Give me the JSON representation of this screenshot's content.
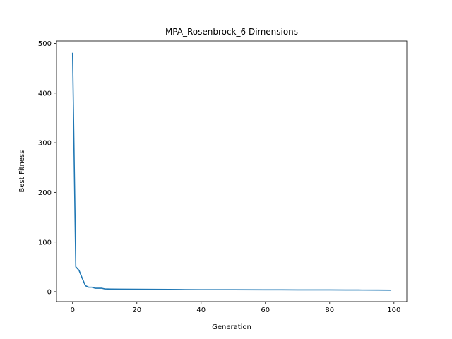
{
  "chart_data": {
    "type": "line",
    "title": "MPA_Rosenbrock_6 Dimensions",
    "xlabel": "Generation",
    "ylabel": "Best Fitness",
    "xlim": [
      -5,
      104
    ],
    "ylim": [
      -20,
      505
    ],
    "xticks": [
      0,
      20,
      40,
      60,
      80,
      100
    ],
    "yticks": [
      0,
      100,
      200,
      300,
      400,
      500
    ],
    "grid": false,
    "series": [
      {
        "name": "",
        "color": "#1f77b4",
        "x": [
          0,
          1,
          2,
          3,
          4,
          5,
          6,
          7,
          8,
          9,
          10,
          12,
          15,
          20,
          25,
          30,
          35,
          40,
          50,
          60,
          65,
          70,
          80,
          85,
          90,
          95,
          99
        ],
        "y": [
          480,
          50,
          43,
          27,
          12,
          9,
          9,
          7,
          7,
          7,
          5.5,
          5.2,
          5,
          4.8,
          4.6,
          4.4,
          4.2,
          4,
          3.9,
          3.8,
          3.7,
          3.6,
          3.5,
          3.4,
          3.3,
          3.2,
          3.1
        ]
      }
    ]
  }
}
